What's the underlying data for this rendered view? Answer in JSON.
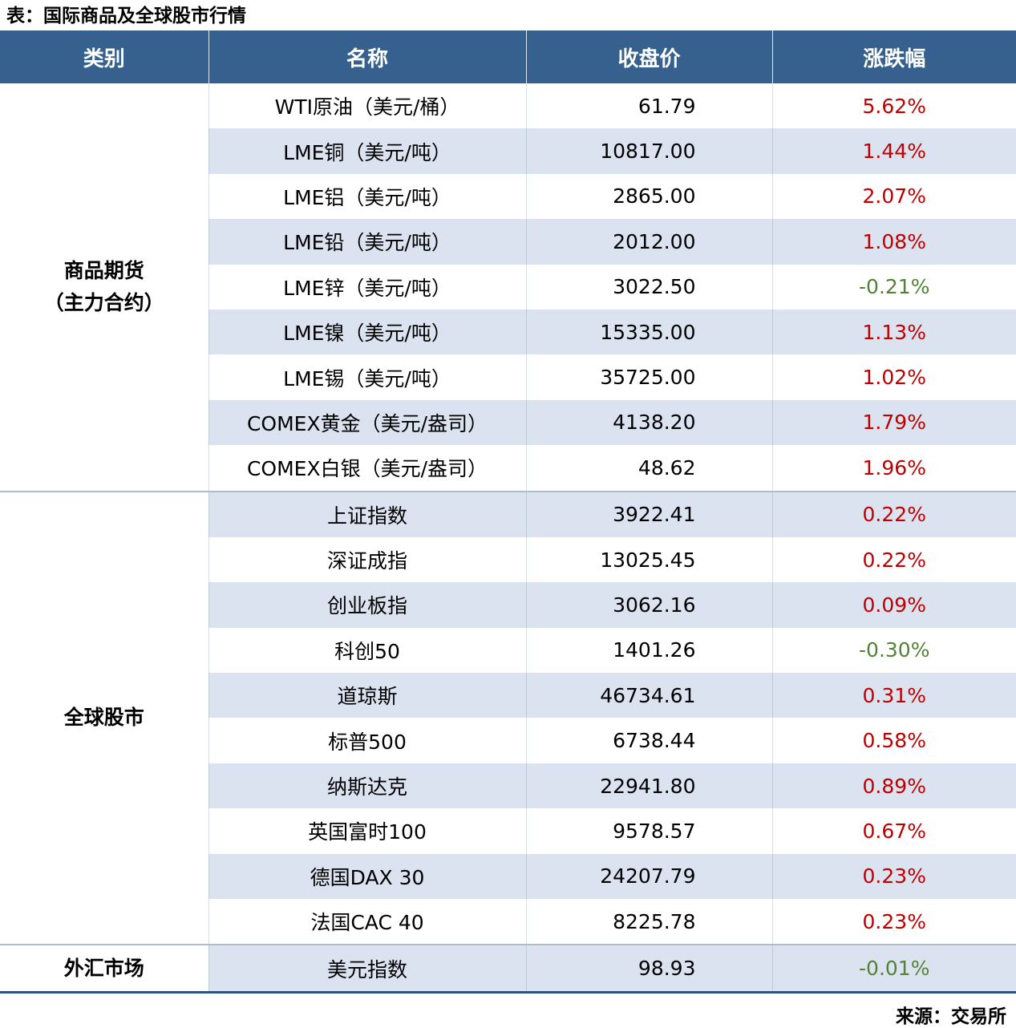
{
  "title": "表：国际商品及全球股市行情",
  "source": "来源：交易所",
  "colors": {
    "header_bg": "#36618F",
    "header_text": "#FFFFFF",
    "row_bg": "#FFFFFF",
    "row_alt_bg": "#DAE3EF",
    "up_red": "#C00000",
    "down_green": "#548235",
    "bottom_border": "#2D5480",
    "section_divider": "#AEBDCD"
  },
  "chart_data": {
    "type": "table",
    "title": "表：国际商品及全球股市行情",
    "source": "来源：交易所",
    "columns": [
      "类别",
      "名称",
      "收盘价",
      "涨跌幅"
    ],
    "sections": [
      {
        "category": "商品期货（主力合约）",
        "category_lines": [
          "商品期货",
          "（主力合约）"
        ],
        "rows": [
          {
            "name": "WTI原油（美元/桶）",
            "close": "61.79",
            "change": "5.62%",
            "direction": "up"
          },
          {
            "name": "LME铜（美元/吨）",
            "close": "10817.00",
            "change": "1.44%",
            "direction": "up"
          },
          {
            "name": "LME铝（美元/吨）",
            "close": "2865.00",
            "change": "2.07%",
            "direction": "up"
          },
          {
            "name": "LME铅（美元/吨）",
            "close": "2012.00",
            "change": "1.08%",
            "direction": "up"
          },
          {
            "name": "LME锌（美元/吨）",
            "close": "3022.50",
            "change": "-0.21%",
            "direction": "down"
          },
          {
            "name": "LME镍（美元/吨）",
            "close": "15335.00",
            "change": "1.13%",
            "direction": "up"
          },
          {
            "name": "LME锡（美元/吨）",
            "close": "35725.00",
            "change": "1.02%",
            "direction": "up"
          },
          {
            "name": "COMEX黄金（美元/盎司）",
            "close": "4138.20",
            "change": "1.79%",
            "direction": "up"
          },
          {
            "name": "COMEX白银（美元/盎司）",
            "close": "48.62",
            "change": "1.96%",
            "direction": "up"
          }
        ]
      },
      {
        "category": "全球股市",
        "category_lines": [
          "全球股市"
        ],
        "rows": [
          {
            "name": "上证指数",
            "close": "3922.41",
            "change": "0.22%",
            "direction": "up"
          },
          {
            "name": "深证成指",
            "close": "13025.45",
            "change": "0.22%",
            "direction": "up"
          },
          {
            "name": "创业板指",
            "close": "3062.16",
            "change": "0.09%",
            "direction": "up"
          },
          {
            "name": "科创50",
            "close": "1401.26",
            "change": "-0.30%",
            "direction": "down"
          },
          {
            "name": "道琼斯",
            "close": "46734.61",
            "change": "0.31%",
            "direction": "up"
          },
          {
            "name": "标普500",
            "close": "6738.44",
            "change": "0.58%",
            "direction": "up"
          },
          {
            "name": "纳斯达克",
            "close": "22941.80",
            "change": "0.89%",
            "direction": "up"
          },
          {
            "name": "英国富时100",
            "close": "9578.57",
            "change": "0.67%",
            "direction": "up"
          },
          {
            "name": "德国DAX 30",
            "close": "24207.79",
            "change": "0.23%",
            "direction": "up"
          },
          {
            "name": "法国CAC 40",
            "close": "8225.78",
            "change": "0.23%",
            "direction": "up"
          }
        ]
      },
      {
        "category": "外汇市场",
        "category_lines": [
          "外汇市场"
        ],
        "rows": [
          {
            "name": "美元指数",
            "close": "98.93",
            "change": "-0.01%",
            "direction": "down"
          }
        ]
      }
    ]
  }
}
